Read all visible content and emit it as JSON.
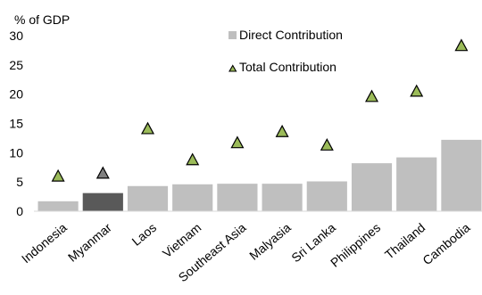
{
  "chart_data": {
    "type": "bar",
    "ylabel": "% of GDP",
    "ylim": [
      0,
      30
    ],
    "yticks": [
      0,
      5,
      10,
      15,
      20,
      25,
      30
    ],
    "grid": false,
    "legend_position": "top-right",
    "categories": [
      "Indonesia",
      "Myanmar",
      "Laos",
      "Vietnam",
      "Southeast Asia",
      "Malyasia",
      "Sri Lanka",
      "Philippines",
      "Thailand",
      "Cambodia"
    ],
    "series": [
      {
        "name": "Direct Contribution",
        "kind": "bar",
        "values": [
          1.7,
          3.1,
          4.3,
          4.6,
          4.7,
          4.7,
          5.1,
          8.2,
          9.2,
          12.2
        ],
        "color": "#bfbfbf",
        "highlight_category": "Myanmar",
        "highlight_color": "#595959"
      },
      {
        "name": "Total Contribution",
        "kind": "marker",
        "marker": "triangle",
        "values": [
          6.0,
          6.5,
          14.1,
          8.8,
          11.7,
          13.6,
          11.3,
          19.6,
          20.5,
          28.3
        ],
        "color": "#9bbb59",
        "highlight_category": "Myanmar",
        "highlight_color": "#7f7f7f"
      }
    ]
  }
}
